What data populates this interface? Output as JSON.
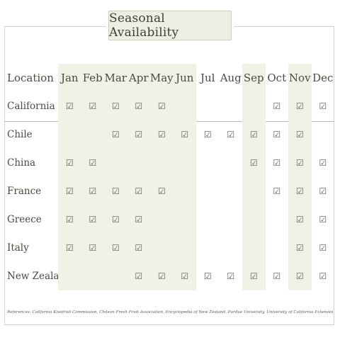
{
  "title": "Seasonal Availability",
  "header": {
    "location_label": "Location",
    "months": [
      "Jan",
      "Feb",
      "Mar",
      "Apr",
      "May",
      "Jun",
      "Jul",
      "Aug",
      "Sep",
      "Oct",
      "Nov",
      "Dec"
    ]
  },
  "shaded_months": [
    0,
    1,
    2,
    3,
    4,
    5,
    8,
    10
  ],
  "check_glyph": "☑",
  "rows": [
    {
      "location": "California",
      "available": [
        true,
        true,
        true,
        true,
        true,
        false,
        false,
        false,
        false,
        true,
        true,
        true
      ]
    },
    {
      "location": "Chile",
      "available": [
        false,
        false,
        true,
        true,
        true,
        true,
        true,
        true,
        true,
        true,
        true,
        false
      ]
    },
    {
      "location": "China",
      "available": [
        true,
        true,
        false,
        false,
        false,
        false,
        false,
        false,
        true,
        true,
        true,
        true
      ]
    },
    {
      "location": "France",
      "available": [
        true,
        true,
        true,
        true,
        true,
        false,
        false,
        false,
        false,
        true,
        true,
        true
      ]
    },
    {
      "location": "Greece",
      "available": [
        true,
        true,
        true,
        true,
        false,
        false,
        false,
        false,
        false,
        false,
        true,
        true
      ]
    },
    {
      "location": "Italy",
      "available": [
        true,
        true,
        true,
        true,
        false,
        false,
        false,
        false,
        false,
        false,
        true,
        true
      ]
    },
    {
      "location": "New Zealand",
      "available": [
        false,
        false,
        false,
        true,
        true,
        true,
        true,
        true,
        true,
        true,
        true,
        true
      ]
    }
  ],
  "references": "References: California Kiwifruit Commission, Chilean Fresh Fruit Association, Encyclopedia of New Zealand, Purdue University, University of California Extension"
}
